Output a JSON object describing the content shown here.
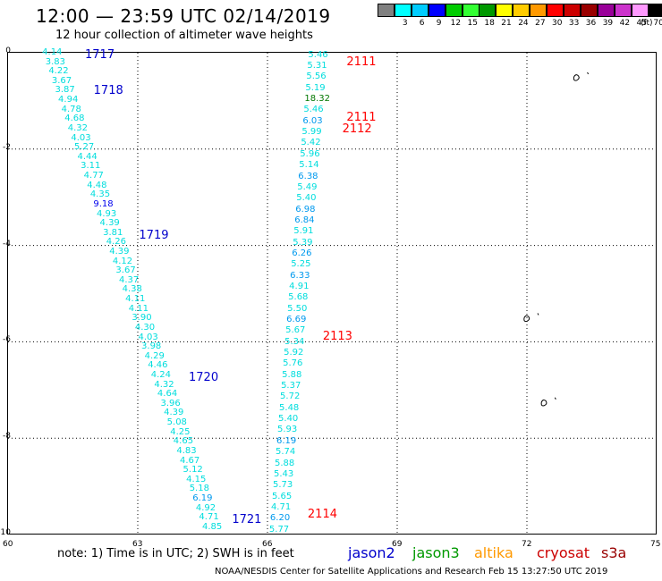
{
  "title": "12:00 — 23:59 UTC 02/14/2019",
  "subtitle": "12 hour collection of altimeter wave heights",
  "legend": {
    "unit": "(ft)",
    "items": [
      {
        "label": "",
        "color": "#808080"
      },
      {
        "label": "3",
        "color": "#00ffff"
      },
      {
        "label": "6",
        "color": "#00ccff"
      },
      {
        "label": "9",
        "color": "#0000ff"
      },
      {
        "label": "12",
        "color": "#00cc00"
      },
      {
        "label": "15",
        "color": "#33ff33"
      },
      {
        "label": "18",
        "color": "#009900"
      },
      {
        "label": "21",
        "color": "#ffff00"
      },
      {
        "label": "24",
        "color": "#ffcc00"
      },
      {
        "label": "27",
        "color": "#ff9900"
      },
      {
        "label": "30",
        "color": "#ff0000"
      },
      {
        "label": "33",
        "color": "#cc0000"
      },
      {
        "label": "36",
        "color": "#990000"
      },
      {
        "label": "39",
        "color": "#990099"
      },
      {
        "label": "42",
        "color": "#cc33cc"
      },
      {
        "label": "45",
        "color": "#ff99ff"
      },
      {
        "label": "70",
        "color": "#000000"
      }
    ]
  },
  "axes": {
    "x_ticks": [
      "60",
      "63",
      "66",
      "69",
      "72",
      "75"
    ],
    "y_ticks": [
      "0",
      "-2",
      "-4",
      "-6",
      "-8",
      "-10"
    ],
    "xlim": [
      60,
      75
    ],
    "ylim": [
      -10,
      0
    ]
  },
  "passes": [
    {
      "label": "1717",
      "color": "#0000cc",
      "lon": 61.8,
      "lat": -0.05
    },
    {
      "label": "1718",
      "color": "#0000cc",
      "lon": 62.0,
      "lat": -0.8
    },
    {
      "label": "1719",
      "color": "#0000cc",
      "lon": 63.05,
      "lat": -3.8
    },
    {
      "label": "1720",
      "color": "#0000cc",
      "lon": 64.2,
      "lat": -6.75
    },
    {
      "label": "1721",
      "color": "#0000cc",
      "lon": 65.2,
      "lat": -9.7
    },
    {
      "label": "2111",
      "color": "#ff0000",
      "lon": 67.85,
      "lat": -0.2
    },
    {
      "label": "2111",
      "color": "#ff0000",
      "lon": 67.85,
      "lat": -1.35
    },
    {
      "label": "2112",
      "color": "#ff0000",
      "lon": 67.75,
      "lat": -1.6
    },
    {
      "label": "2113",
      "color": "#ff0000",
      "lon": 67.3,
      "lat": -5.9
    },
    {
      "label": "2114",
      "color": "#ff0000",
      "lon": 66.95,
      "lat": -9.6
    }
  ],
  "tracks": [
    {
      "satellite": "jason2",
      "start_lon": 61.1,
      "start_lat": 0.0,
      "end_lon": 64.8,
      "end_lat": -9.85,
      "values": [
        "4.14",
        "3.83",
        "4.22",
        "3.67",
        "3.87",
        "4.94",
        "4.78",
        "4.68",
        "4.32",
        "4.03",
        "5.27",
        "4.44",
        "3.11",
        "4.77",
        "4.48",
        "4.35",
        "9.18",
        "4.93",
        "4.39",
        "3.81",
        "4.26",
        "4.39",
        "4.12",
        "3.67",
        "4.37",
        "4.38",
        "4.11",
        "4.11",
        "3.90",
        "4.30",
        "4.03",
        "3.98",
        "4.29",
        "4.46",
        "4.24",
        "4.32",
        "4.64",
        "3.96",
        "4.39",
        "5.08",
        "4.25",
        "4.65",
        "4.83",
        "4.67",
        "5.12",
        "4.15",
        "5.18",
        "6.19",
        "4.92",
        "4.71",
        "4.85"
      ]
    },
    {
      "satellite": "cryosat",
      "start_lon": 67.25,
      "start_lat": -0.05,
      "end_lon": 66.35,
      "end_lat": -9.9,
      "values": [
        "5.46",
        "5.31",
        "5.56",
        "5.19",
        "18.32",
        "5.46",
        "6.03",
        "5.99",
        "5.42",
        "5.96",
        "5.14",
        "6.38",
        "5.49",
        "5.40",
        "6.98",
        "6.84",
        "5.91",
        "5.39",
        "6.26",
        "5.25",
        "6.33",
        "4.91",
        "5.68",
        "5.50",
        "6.69",
        "5.67",
        "5.34",
        "5.92",
        "5.76",
        "5.88",
        "5.37",
        "5.72",
        "5.48",
        "5.40",
        "5.93",
        "6.19",
        "5.74",
        "5.88",
        "5.43",
        "5.73",
        "5.65",
        "4.71",
        "6.20",
        "5.77"
      ]
    }
  ],
  "islands": [
    {
      "name": "island-north",
      "lon": 73.15,
      "lat": -0.5
    },
    {
      "name": "island-mid",
      "lon": 72.0,
      "lat": -5.5
    },
    {
      "name": "island-south",
      "lon": 72.4,
      "lat": -7.25
    }
  ],
  "footnote": "note:  1) Time is in UTC; 2) SWH is in feet",
  "satellites": [
    {
      "label": "jason2",
      "color": "#0000cc"
    },
    {
      "label": "jason3",
      "color": "#009900"
    },
    {
      "label": "altika",
      "color": "#ff9900"
    },
    {
      "label": "cryosat",
      "color": "#cc0000"
    },
    {
      "label": "s3a",
      "color": "#990000"
    }
  ],
  "credit": "NOAA/NESDIS Center for Satellite Applications and Research     Feb 15 13:27:50 UTC 2019"
}
